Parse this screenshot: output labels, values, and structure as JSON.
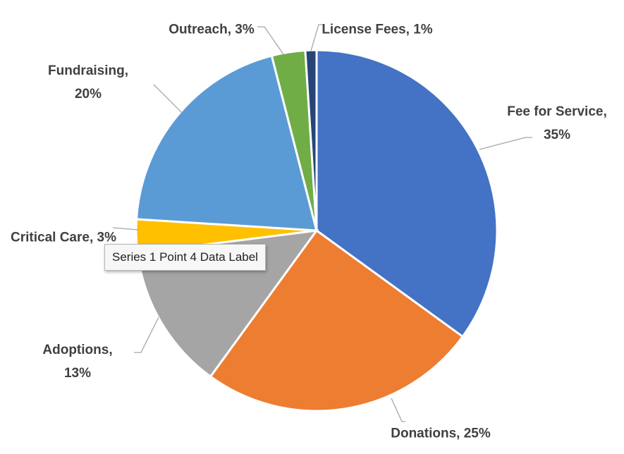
{
  "chart_data": {
    "type": "pie",
    "categories": [
      "Fee for Service",
      "Donations",
      "Adoptions",
      "Critical Care",
      "Fundraising",
      "Outreach",
      "License Fees"
    ],
    "values": [
      35,
      25,
      13,
      3,
      20,
      3,
      1
    ],
    "value_labels": [
      "Fee for Service, 35%",
      "Donations, 25%",
      "Adoptions, 13%",
      "Critical Care, 3%",
      "Fundraising, 20%",
      "Outreach, 3%",
      "License Fees, 1%"
    ],
    "colors": [
      "#4472c4",
      "#ed7d31",
      "#a5a5a5",
      "#ffc000",
      "#5b9bd5",
      "#70ad47",
      "#264478"
    ],
    "tooltip": "Series 1 Point 4 Data Label"
  }
}
